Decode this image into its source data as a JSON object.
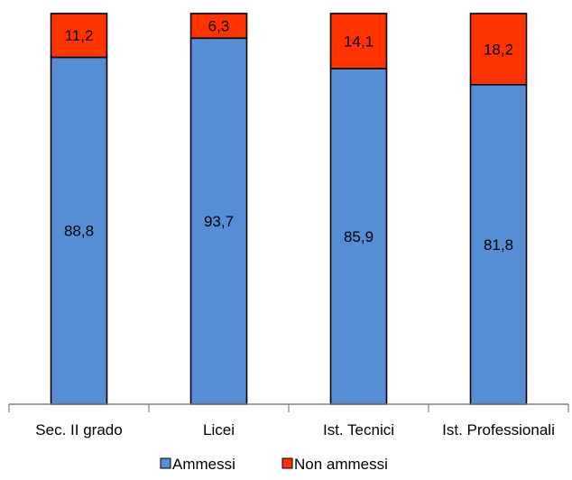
{
  "chart_data": {
    "type": "bar",
    "stacked": true,
    "categories": [
      "Sec. II grado",
      "Licei",
      "Ist. Tecnici",
      "Ist. Professionali"
    ],
    "series": [
      {
        "name": "Ammessi",
        "values": [
          88.8,
          93.7,
          85.9,
          81.8
        ],
        "labels": [
          "88,8",
          "93,7",
          "85,9",
          "81,8"
        ],
        "color": "#558ed5"
      },
      {
        "name": "Non ammessi",
        "values": [
          11.2,
          6.3,
          14.1,
          18.2
        ],
        "labels": [
          "11,2",
          "6,3",
          "14,1",
          "18,2"
        ],
        "color": "#ff3300"
      }
    ],
    "ylim": [
      0,
      100
    ],
    "grid": false,
    "legend_position": "bottom"
  }
}
